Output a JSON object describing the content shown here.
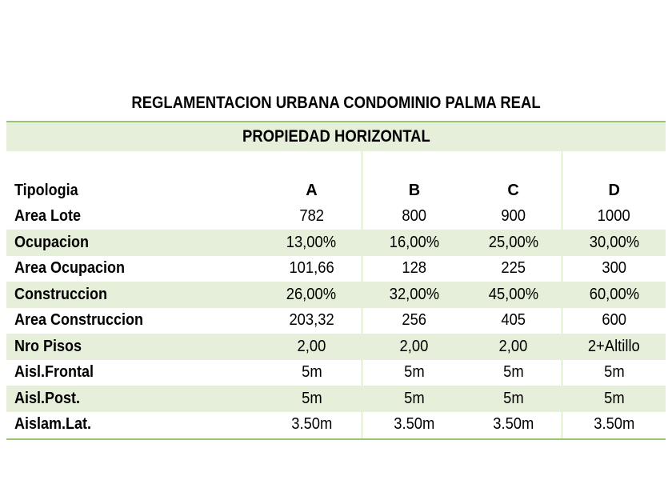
{
  "title": "REGLAMENTACION URBANA CONDOMINIO PALMA REAL",
  "subtitle": "PROPIEDAD HORIZONTAL",
  "table": {
    "header": {
      "label": "Tipologia",
      "cols": [
        "A",
        "B",
        "C",
        "D"
      ]
    },
    "rows": [
      {
        "label": "Area Lote",
        "values": [
          "782",
          "800",
          "900",
          "1000"
        ]
      },
      {
        "label": "Ocupacion",
        "values": [
          "13,00%",
          "16,00%",
          "25,00%",
          "30,00%"
        ]
      },
      {
        "label": "Area  Ocupacion",
        "values": [
          "101,66",
          "128",
          "225",
          "300"
        ]
      },
      {
        "label": "Construccion",
        "values": [
          "26,00%",
          "32,00%",
          "45,00%",
          "60,00%"
        ]
      },
      {
        "label": "Area Construccion",
        "values": [
          "203,32",
          "256",
          "405",
          "600"
        ]
      },
      {
        "label": "Nro Pisos",
        "values": [
          "2,00",
          "2,00",
          "2,00",
          "2+Altillo"
        ]
      },
      {
        "label": "Aisl.Frontal",
        "values": [
          "5m",
          "5m",
          "5m",
          "5m"
        ]
      },
      {
        "label": "Aisl.Post.",
        "values": [
          "5m",
          "5m",
          "5m",
          "5m"
        ]
      },
      {
        "label": "Aislam.Lat.",
        "values": [
          "3.50m",
          "3.50m",
          "3.50m",
          "3.50m"
        ]
      }
    ]
  },
  "colors": {
    "band": "#e5efd9",
    "rule": "#9bc472",
    "divider": "#cfe0bd"
  }
}
